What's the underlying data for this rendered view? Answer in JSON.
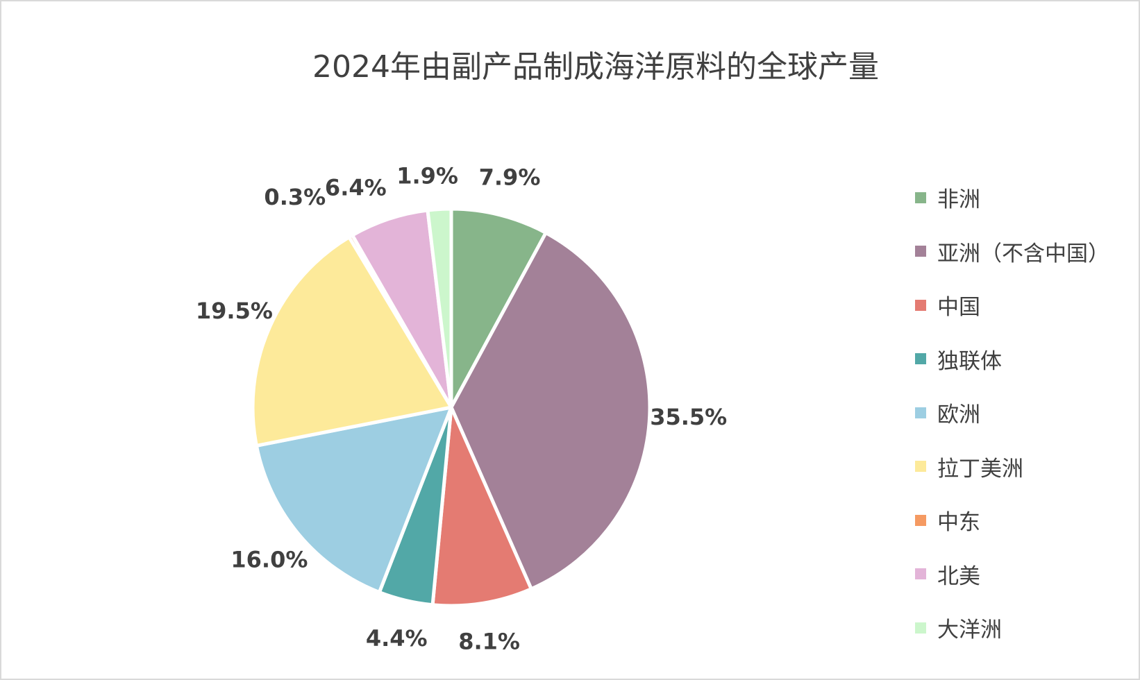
{
  "chart_data": {
    "type": "pie",
    "title": "2024年由副产品制成海洋原料的全球产量",
    "categories": [
      "非洲",
      "亚洲（不含中国）",
      "中国",
      "独联体",
      "欧洲",
      "拉丁美洲",
      "中东",
      "北美",
      "大洋洲"
    ],
    "values": [
      7.9,
      35.5,
      8.1,
      4.4,
      16.0,
      19.5,
      0.3,
      6.4,
      1.9
    ],
    "labels": [
      "7.9%",
      "35.5%",
      "8.1%",
      "4.4%",
      "16.0%",
      "19.5%",
      "0.3%",
      "6.4%",
      "1.9%"
    ],
    "colors": [
      "#87b58a",
      "#a38198",
      "#e47b72",
      "#52a8a7",
      "#9dcee2",
      "#fdea9a",
      "#f59a62",
      "#e3b4d8",
      "#ccf6cc"
    ],
    "legend_position": "right",
    "start_angle_deg": 0,
    "direction": "clockwise"
  }
}
